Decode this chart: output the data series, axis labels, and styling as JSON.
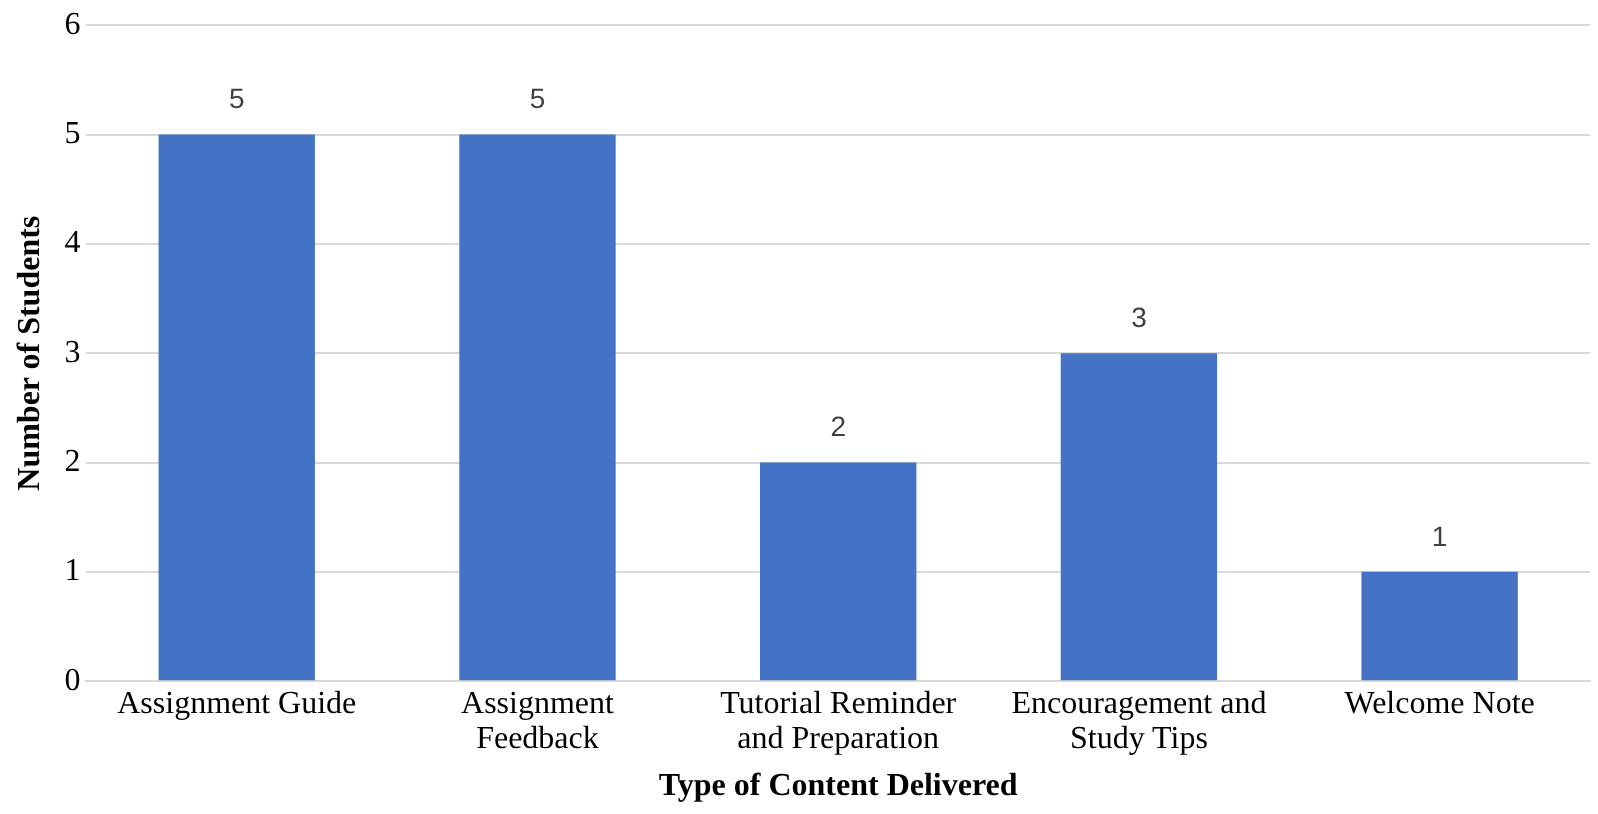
{
  "chart_data": {
    "type": "bar",
    "xlabel": "Type of Content Delivered",
    "ylabel": "Number of Students",
    "categories": [
      "Assignment Guide",
      "Assignment Feedback",
      "Tutorial Reminder and Preparation",
      "Encouragement and Study Tips",
      "Welcome Note"
    ],
    "values": [
      5,
      5,
      2,
      3,
      1
    ],
    "color": "#4472c4",
    "ylim": [
      0,
      6
    ],
    "yticks": [
      0,
      1,
      2,
      3,
      4,
      5,
      6
    ],
    "grid": "y",
    "data_labels": true,
    "legend": false
  }
}
